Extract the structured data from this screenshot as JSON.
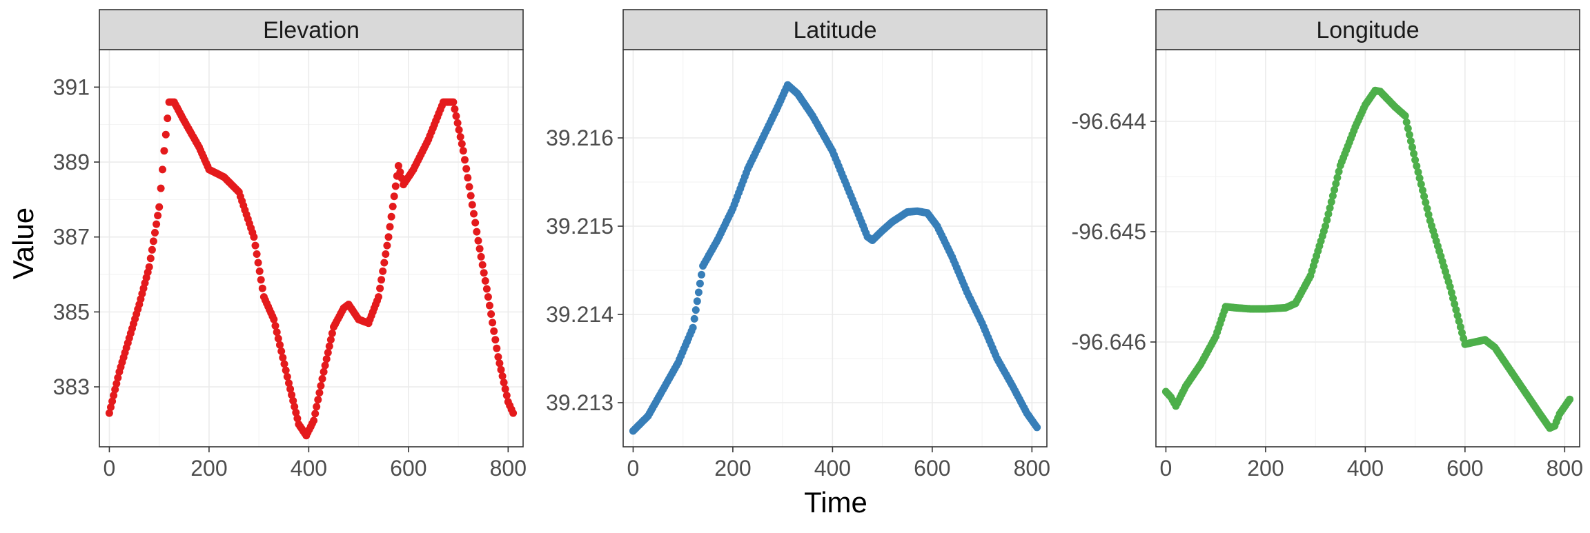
{
  "chart_data": {
    "type": "scatter",
    "xlabel": "Time",
    "ylabel": "Value",
    "grid": true,
    "facets": [
      {
        "strip": "Elevation",
        "color": "#E41A1C",
        "xlim": [
          -20,
          830
        ],
        "ylim": [
          381.4,
          392.0
        ],
        "x_ticks": [
          0,
          200,
          400,
          600,
          800
        ],
        "y_ticks": [
          383,
          385,
          387,
          389,
          391
        ],
        "y_tick_labels": [
          "383",
          "385",
          "387",
          "389",
          "391"
        ],
        "points": [
          [
            0,
            382.3
          ],
          [
            20,
            383.4
          ],
          [
            40,
            384.3
          ],
          [
            60,
            385.2
          ],
          [
            80,
            386.2
          ],
          [
            100,
            387.8
          ],
          [
            110,
            389.3
          ],
          [
            120,
            390.6
          ],
          [
            130,
            390.6
          ],
          [
            150,
            390.1
          ],
          [
            180,
            389.4
          ],
          [
            200,
            388.8
          ],
          [
            230,
            388.6
          ],
          [
            260,
            388.2
          ],
          [
            290,
            387.0
          ],
          [
            310,
            385.4
          ],
          [
            330,
            384.8
          ],
          [
            360,
            383.1
          ],
          [
            380,
            382.0
          ],
          [
            395,
            381.7
          ],
          [
            410,
            382.1
          ],
          [
            430,
            383.4
          ],
          [
            450,
            384.6
          ],
          [
            470,
            385.1
          ],
          [
            480,
            385.2
          ],
          [
            500,
            384.8
          ],
          [
            520,
            384.7
          ],
          [
            540,
            385.4
          ],
          [
            560,
            387.0
          ],
          [
            580,
            388.9
          ],
          [
            590,
            388.4
          ],
          [
            610,
            388.8
          ],
          [
            640,
            389.6
          ],
          [
            670,
            390.6
          ],
          [
            690,
            390.6
          ],
          [
            710,
            389.3
          ],
          [
            740,
            386.9
          ],
          [
            760,
            385.4
          ],
          [
            780,
            383.8
          ],
          [
            800,
            382.6
          ],
          [
            810,
            382.3
          ]
        ]
      },
      {
        "strip": "Latitude",
        "color": "#377EB8",
        "xlim": [
          -20,
          830
        ],
        "ylim": [
          39.2125,
          39.217
        ],
        "x_ticks": [
          0,
          200,
          400,
          600,
          800
        ],
        "y_ticks": [
          39.213,
          39.214,
          39.215,
          39.216
        ],
        "y_tick_labels": [
          "39.213",
          "39.214",
          "39.215",
          "39.216"
        ],
        "points": [
          [
            0,
            39.21268
          ],
          [
            30,
            39.21285
          ],
          [
            60,
            39.21315
          ],
          [
            90,
            39.21345
          ],
          [
            120,
            39.21385
          ],
          [
            140,
            39.21455
          ],
          [
            170,
            39.21485
          ],
          [
            200,
            39.2152
          ],
          [
            230,
            39.21565
          ],
          [
            260,
            39.216
          ],
          [
            290,
            39.21635
          ],
          [
            310,
            39.2166
          ],
          [
            330,
            39.2165
          ],
          [
            360,
            39.21625
          ],
          [
            400,
            39.21585
          ],
          [
            440,
            39.2153
          ],
          [
            470,
            39.21488
          ],
          [
            480,
            39.21484
          ],
          [
            500,
            39.21495
          ],
          [
            520,
            39.21505
          ],
          [
            550,
            39.21516
          ],
          [
            570,
            39.21517
          ],
          [
            590,
            39.21515
          ],
          [
            610,
            39.215
          ],
          [
            640,
            39.21465
          ],
          [
            670,
            39.21425
          ],
          [
            700,
            39.2139
          ],
          [
            730,
            39.2135
          ],
          [
            760,
            39.2132
          ],
          [
            790,
            39.21288
          ],
          [
            810,
            39.21272
          ]
        ]
      },
      {
        "strip": "Longitude",
        "color": "#4DAF4A",
        "xlim": [
          -20,
          830
        ],
        "ylim": [
          -96.64695,
          -96.64335
        ],
        "x_ticks": [
          0,
          200,
          400,
          600,
          800
        ],
        "y_ticks": [
          -96.646,
          -96.645,
          -96.644
        ],
        "y_tick_labels": [
          "-96.646",
          "-96.645",
          "-96.644"
        ],
        "points": [
          [
            0,
            -96.64645
          ],
          [
            10,
            -96.6465
          ],
          [
            20,
            -96.64658
          ],
          [
            40,
            -96.6464
          ],
          [
            70,
            -96.6462
          ],
          [
            100,
            -96.64595
          ],
          [
            120,
            -96.64568
          ],
          [
            140,
            -96.64569
          ],
          [
            170,
            -96.6457
          ],
          [
            200,
            -96.6457
          ],
          [
            240,
            -96.64569
          ],
          [
            260,
            -96.64565
          ],
          [
            290,
            -96.6454
          ],
          [
            320,
            -96.64495
          ],
          [
            350,
            -96.6444
          ],
          [
            380,
            -96.64405
          ],
          [
            400,
            -96.64385
          ],
          [
            420,
            -96.64372
          ],
          [
            430,
            -96.64373
          ],
          [
            460,
            -96.64387
          ],
          [
            480,
            -96.64395
          ],
          [
            500,
            -96.64435
          ],
          [
            530,
            -96.6449
          ],
          [
            570,
            -96.6455
          ],
          [
            600,
            -96.64602
          ],
          [
            620,
            -96.646
          ],
          [
            640,
            -96.64598
          ],
          [
            660,
            -96.64605
          ],
          [
            690,
            -96.64625
          ],
          [
            720,
            -96.64645
          ],
          [
            750,
            -96.64665
          ],
          [
            770,
            -96.64678
          ],
          [
            780,
            -96.64676
          ],
          [
            790,
            -96.64665
          ],
          [
            810,
            -96.64652
          ]
        ]
      }
    ]
  }
}
